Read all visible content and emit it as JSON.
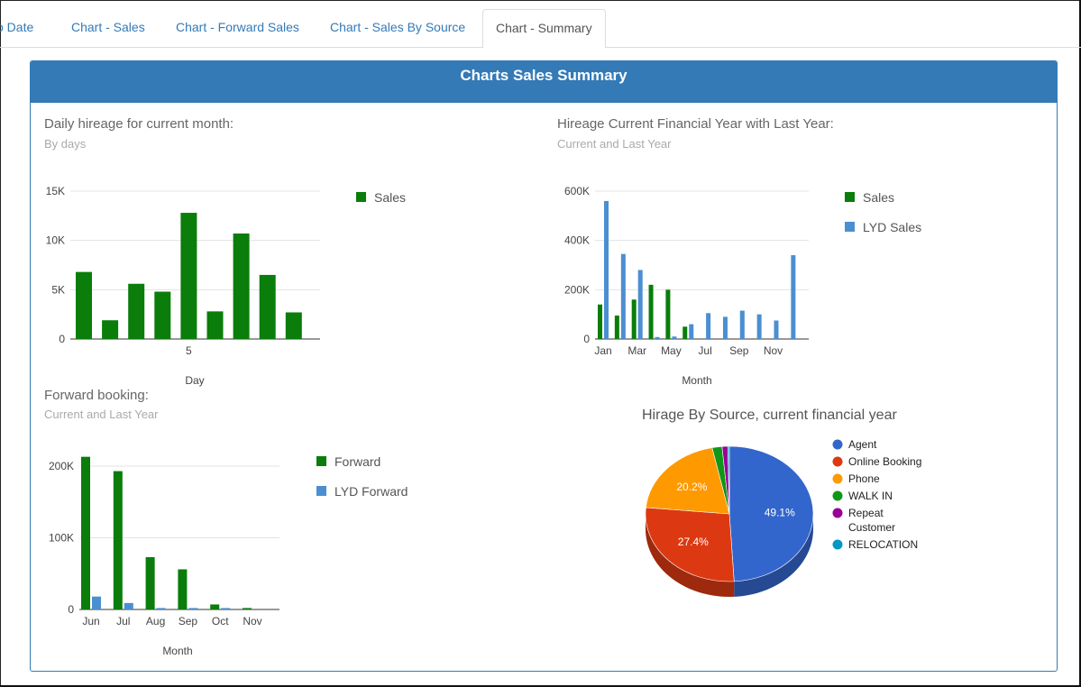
{
  "tabs": [
    {
      "label": "o Date"
    },
    {
      "label": "Chart - Sales"
    },
    {
      "label": "Chart - Forward Sales"
    },
    {
      "label": "Chart - Sales By Source"
    },
    {
      "label": "Chart - Summary"
    }
  ],
  "panel": {
    "title": "Charts Sales Summary"
  },
  "colors": {
    "sales": "#0a7d0a",
    "lyd": "#4a8fd1",
    "accent": "#337ab7"
  },
  "chart_data": [
    {
      "id": "daily",
      "type": "bar",
      "title": "Daily hireage for current month:",
      "subtitle": "By days",
      "xlabel": "Day",
      "ylabel": "",
      "x_tick_labels": [
        "5"
      ],
      "y_ticks": [
        "0",
        "5K",
        "10K",
        "15K"
      ],
      "ylim": [
        0,
        15000
      ],
      "categories": [
        1,
        2,
        3,
        4,
        5,
        6,
        7,
        8,
        9
      ],
      "series": [
        {
          "name": "Sales",
          "values": [
            6800,
            1900,
            5600,
            4800,
            12800,
            2800,
            10700,
            6500,
            2700
          ]
        }
      ],
      "legend": "right"
    },
    {
      "id": "fy",
      "type": "bar",
      "title": "Hireage Current Financial Year with Last Year:",
      "subtitle": "Current and Last Year",
      "xlabel": "Month",
      "ylabel": "",
      "x_tick_labels": [
        "Jan",
        "Mar",
        "May",
        "Jul",
        "Sep",
        "Nov"
      ],
      "y_ticks": [
        "0",
        "200K",
        "400K",
        "600K"
      ],
      "ylim": [
        0,
        600000
      ],
      "categories": [
        "Jan",
        "Feb",
        "Mar",
        "Apr",
        "May",
        "Jun",
        "Jul",
        "Aug",
        "Sep",
        "Oct",
        "Nov",
        "Dec"
      ],
      "series": [
        {
          "name": "Sales",
          "values": [
            140000,
            95000,
            160000,
            220000,
            200000,
            50000,
            0,
            0,
            0,
            0,
            0,
            0
          ]
        },
        {
          "name": "LYD Sales",
          "values": [
            560000,
            345000,
            280000,
            8000,
            10000,
            60000,
            105000,
            90000,
            115000,
            100000,
            75000,
            340000
          ]
        }
      ],
      "legend": "right"
    },
    {
      "id": "forward",
      "type": "bar",
      "title": "Forward booking:",
      "subtitle": "Current and Last Year",
      "xlabel": "Month",
      "ylabel": "",
      "x_tick_labels": [
        "Jun",
        "Jul",
        "Aug",
        "Sep",
        "Oct",
        "Nov"
      ],
      "y_ticks": [
        "0",
        "100K",
        "200K"
      ],
      "ylim": [
        0,
        200000
      ],
      "categories": [
        "Jun",
        "Jul",
        "Aug",
        "Sep",
        "Oct",
        "Nov"
      ],
      "series": [
        {
          "name": "Forward",
          "values": [
            213000,
            193000,
            73000,
            56000,
            7000,
            2000
          ]
        },
        {
          "name": "LYD Forward",
          "values": [
            18000,
            9000,
            2000,
            2000,
            2000,
            0
          ]
        }
      ],
      "legend": "right"
    },
    {
      "id": "source",
      "type": "pie",
      "title": "Hirage By Source, current financial year",
      "slices": [
        {
          "label": "Agent",
          "value": 49.1,
          "display": "49.1%",
          "color": "#3366cc"
        },
        {
          "label": "Online Booking",
          "value": 27.4,
          "display": "27.4%",
          "color": "#dc3912"
        },
        {
          "label": "Phone",
          "value": 20.2,
          "display": "20.2%",
          "color": "#ff9900"
        },
        {
          "label": "WALK IN",
          "value": 1.9,
          "display": "",
          "color": "#109618"
        },
        {
          "label": "Repeat Customer",
          "value": 1.1,
          "display": "",
          "color": "#990099"
        },
        {
          "label": "RELOCATION",
          "value": 0.3,
          "display": "",
          "color": "#0099c6"
        }
      ],
      "is3D": true,
      "legend": "right"
    }
  ]
}
